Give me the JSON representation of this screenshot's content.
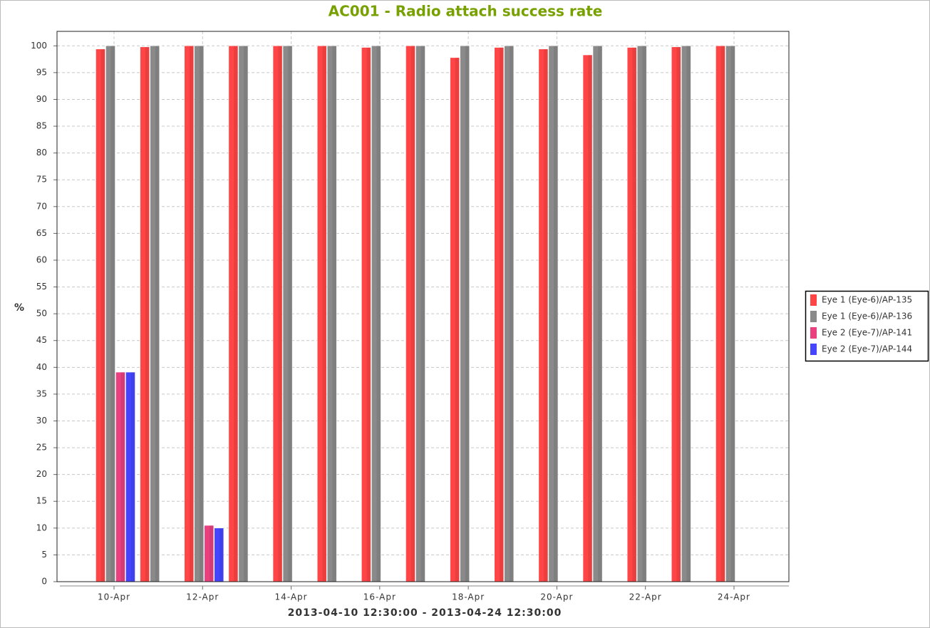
{
  "chart_data": {
    "type": "bar",
    "title": "AC001 - Radio attach success rate",
    "y_label": "%",
    "x_label": "2013-04-10 12:30:00 - 2013-04-24 12:30:00",
    "categories": [
      "10-Apr",
      null,
      "12-Apr",
      null,
      "14-Apr",
      null,
      "16-Apr",
      null,
      "18-Apr",
      null,
      "20-Apr",
      null,
      "22-Apr",
      null,
      "24-Apr"
    ],
    "series": [
      {
        "name": "Eye 1 (Eye-6)/AP-135",
        "color": "#ff4545",
        "values": [
          99.4,
          99.8,
          100,
          100,
          100,
          100,
          99.7,
          100,
          97.8,
          99.7,
          99.4,
          98.3,
          99.7,
          99.8,
          100
        ]
      },
      {
        "name": "Eye 1 (Eye-6)/AP-136",
        "color": "#8a8a8a",
        "values": [
          100,
          100,
          100,
          100,
          100,
          100,
          100,
          100,
          100,
          100,
          100,
          100,
          100,
          100,
          100
        ]
      },
      {
        "name": "Eye 2 (Eye-7)/AP-141",
        "color": "#ea4080",
        "values": [
          39.1,
          null,
          10.5,
          null,
          null,
          null,
          null,
          null,
          null,
          null,
          null,
          null,
          null,
          null,
          null
        ]
      },
      {
        "name": "Eye 2 (Eye-7)/AP-144",
        "color": "#4545ff",
        "values": [
          39.1,
          null,
          10.0,
          null,
          null,
          null,
          null,
          null,
          null,
          null,
          null,
          null,
          null,
          null,
          null
        ]
      }
    ],
    "ylim": [
      0,
      102.7
    ],
    "yticks": [
      0,
      5,
      10,
      15,
      20,
      25,
      30,
      35,
      40,
      45,
      50,
      55,
      60,
      65,
      70,
      75,
      80,
      85,
      90,
      95,
      100
    ],
    "grid": true,
    "legend": "right"
  }
}
